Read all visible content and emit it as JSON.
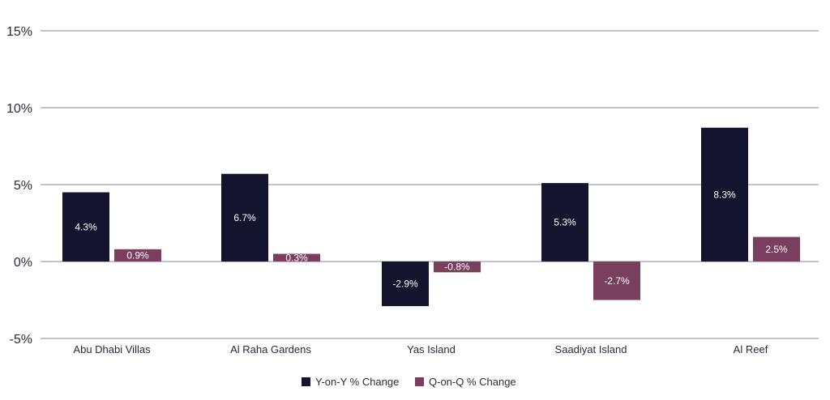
{
  "chart_data": {
    "type": "bar",
    "categories": [
      "Abu Dhabi Villas",
      "Al Raha Gardens",
      "Yas Island",
      "Saadiyat Island",
      "Al Reef"
    ],
    "series": [
      {
        "name": "Y-on-Y % Change",
        "values": [
          4.3,
          6.7,
          -2.9,
          5.3,
          8.3
        ],
        "display_values": [
          4.5,
          5.7,
          -2.9,
          5.1,
          8.7
        ],
        "labels": [
          "4.3%",
          "6.7%",
          "-2.9%",
          "5.3%",
          "8.3%"
        ],
        "color": "#14142e"
      },
      {
        "name": "Q-on-Q % Change",
        "values": [
          0.9,
          0.3,
          -0.8,
          -2.7,
          2.5
        ],
        "display_values": [
          0.8,
          0.5,
          -0.7,
          -2.5,
          1.6
        ],
        "labels": [
          "0.9%",
          "0.3%",
          "-0.8%",
          "-2.7%",
          "2.5%"
        ],
        "color": "#7a3f5e"
      }
    ],
    "title": "",
    "xlabel": "",
    "ylabel": "",
    "ylim": [
      -5,
      15
    ],
    "yticks": [
      -5,
      0,
      5,
      10,
      15
    ],
    "ytick_labels": [
      "-5%",
      "0%",
      "5%",
      "10%",
      "15%"
    ],
    "grid": true,
    "legend_position": "bottom-center"
  }
}
